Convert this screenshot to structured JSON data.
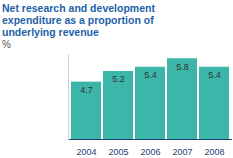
{
  "chart_data": {
    "type": "bar",
    "title": "Net research and development expenditure as a proportion of underlying revenue",
    "subtitle": "%",
    "categories": [
      "2004",
      "2005",
      "2006",
      "2007",
      "2008"
    ],
    "values": [
      4.7,
      5.2,
      5.4,
      5.8,
      5.4
    ],
    "color": "#3cb6a8",
    "ylim": [
      2,
      6
    ],
    "grid": false,
    "data_labels": true,
    "tick_labels": "x"
  }
}
